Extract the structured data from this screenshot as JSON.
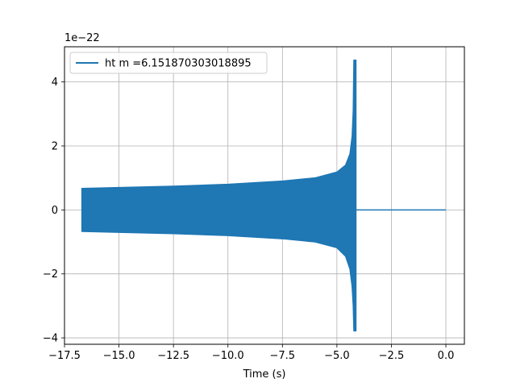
{
  "chart_data": {
    "type": "line",
    "title": "",
    "xlabel": "Time (s)",
    "ylabel": "",
    "y_offset_label": "1e−22",
    "xlim": [
      -17.5,
      0.85
    ],
    "ylim": [
      -4.2,
      5.1
    ],
    "xticks": [
      -17.5,
      -15.0,
      -12.5,
      -10.0,
      -7.5,
      -5.0,
      -2.5,
      0.0
    ],
    "xtick_labels": [
      "−17.5",
      "−15.0",
      "−12.5",
      "−10.0",
      "−7.5",
      "−5.0",
      "−2.5",
      "0.0"
    ],
    "yticks": [
      -4,
      -2,
      0,
      2,
      4
    ],
    "ytick_labels": [
      "−4",
      "−2",
      "0",
      "2",
      "4"
    ],
    "grid": true,
    "legend_position": "upper-left",
    "series": [
      {
        "name": "ht m =6.151870303018895",
        "color": "#1f77b4",
        "envelope_upper": [
          {
            "x": -16.7,
            "y": 0.67
          },
          {
            "x": -15.0,
            "y": 0.7
          },
          {
            "x": -12.5,
            "y": 0.74
          },
          {
            "x": -10.0,
            "y": 0.8
          },
          {
            "x": -7.5,
            "y": 0.9
          },
          {
            "x": -6.0,
            "y": 1.0
          },
          {
            "x": -5.0,
            "y": 1.18
          },
          {
            "x": -4.6,
            "y": 1.4
          },
          {
            "x": -4.4,
            "y": 1.75
          },
          {
            "x": -4.3,
            "y": 2.3
          },
          {
            "x": -4.25,
            "y": 3.1
          },
          {
            "x": -4.22,
            "y": 4.68
          }
        ],
        "envelope_lower": [
          {
            "x": -16.7,
            "y": -0.67
          },
          {
            "x": -15.0,
            "y": -0.7
          },
          {
            "x": -12.5,
            "y": -0.74
          },
          {
            "x": -10.0,
            "y": -0.8
          },
          {
            "x": -7.5,
            "y": -0.9
          },
          {
            "x": -6.0,
            "y": -1.0
          },
          {
            "x": -5.0,
            "y": -1.18
          },
          {
            "x": -4.6,
            "y": -1.45
          },
          {
            "x": -4.4,
            "y": -1.85
          },
          {
            "x": -4.3,
            "y": -2.4
          },
          {
            "x": -4.25,
            "y": -3.0
          },
          {
            "x": -4.22,
            "y": -3.78
          }
        ],
        "flat_segment": [
          {
            "x": -4.15,
            "y": 0
          },
          {
            "x": 0.0,
            "y": 0
          }
        ]
      }
    ]
  }
}
